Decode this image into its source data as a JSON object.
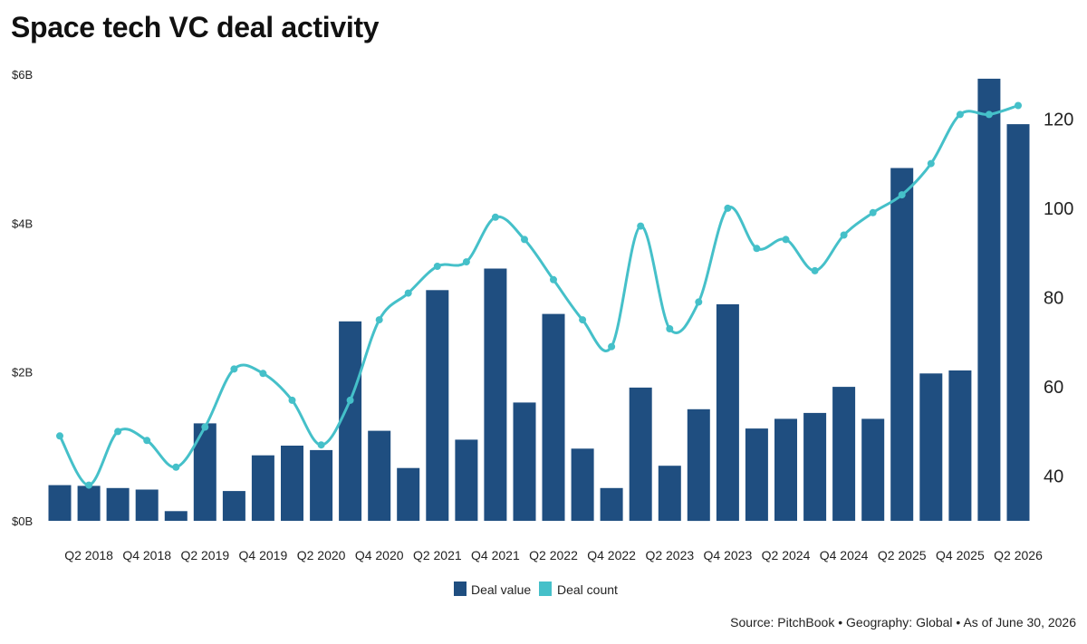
{
  "title": "Space tech VC deal activity",
  "source": "Source: PitchBook • Geography: Global • As of June 30, 2026",
  "colors": {
    "deal_value": "#1f4e80",
    "deal_count": "#45c0c9"
  },
  "chart_data": {
    "type": "bar",
    "categories": [
      "Q1 2018",
      "Q2 2018",
      "Q3 2018",
      "Q4 2018",
      "Q1 2019",
      "Q2 2019",
      "Q3 2019",
      "Q4 2019",
      "Q1 2020",
      "Q2 2020",
      "Q3 2020",
      "Q4 2020",
      "Q1 2021",
      "Q2 2021",
      "Q3 2021",
      "Q4 2021",
      "Q1 2022",
      "Q2 2022",
      "Q3 2022",
      "Q4 2022",
      "Q1 2023",
      "Q2 2023",
      "Q3 2023",
      "Q4 2023",
      "Q1 2024",
      "Q2 2024",
      "Q3 2024",
      "Q4 2024",
      "Q1 2025",
      "Q2 2025",
      "Q3 2025",
      "Q4 2025",
      "Q1 2026",
      "Q2 2026"
    ],
    "x_tick_labels": [
      "Q2 2018",
      "Q4 2018",
      "Q2 2019",
      "Q4 2019",
      "Q2 2020",
      "Q4 2020",
      "Q2 2021",
      "Q4 2021",
      "Q2 2022",
      "Q4 2022",
      "Q2 2023",
      "Q4 2023",
      "Q2 2024",
      "Q4 2024",
      "Q2 2025",
      "Q4 2025",
      "Q2 2026"
    ],
    "series": [
      {
        "name": "Deal value",
        "type": "bar",
        "axis": "left",
        "values": [
          0.48,
          0.47,
          0.44,
          0.42,
          0.13,
          1.31,
          0.4,
          0.88,
          1.01,
          0.95,
          2.68,
          1.21,
          0.71,
          3.1,
          1.09,
          3.39,
          1.59,
          2.78,
          0.97,
          0.44,
          1.79,
          0.74,
          1.5,
          2.91,
          1.24,
          1.37,
          1.45,
          1.8,
          1.37,
          4.74,
          1.98,
          2.02,
          5.94,
          5.33
        ]
      },
      {
        "name": "Deal count",
        "type": "line",
        "axis": "right",
        "values": [
          49,
          38,
          50,
          48,
          42,
          51,
          64,
          63,
          57,
          47,
          57,
          75,
          81,
          87,
          88,
          98,
          93,
          84,
          75,
          69,
          96,
          73,
          79,
          100,
          91,
          93,
          86,
          94,
          99,
          103,
          110,
          121,
          121,
          123
        ]
      }
    ],
    "left_axis": {
      "ticks": [
        "$0B",
        "$2B",
        "$4B",
        "$6B"
      ],
      "tick_values": [
        0,
        2,
        4,
        6
      ],
      "range": [
        0,
        6
      ]
    },
    "right_axis": {
      "ticks": [
        "40",
        "60",
        "80",
        "100",
        "120"
      ],
      "tick_values": [
        40,
        60,
        80,
        100,
        120
      ],
      "range": [
        30,
        130
      ]
    },
    "grid": false,
    "legend_position": "bottom-center"
  }
}
